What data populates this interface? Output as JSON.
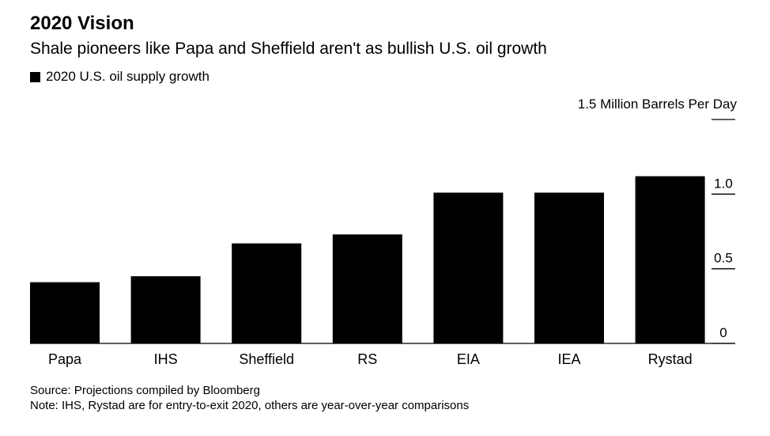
{
  "header": {
    "title": "2020 Vision",
    "subtitle": "Shale pioneers like Papa and Sheffield aren't as bullish U.S. oil growth",
    "legend_label": "2020 U.S. oil supply growth"
  },
  "chart_data": {
    "type": "bar",
    "categories": [
      "Papa",
      "IHS",
      "Sheffield",
      "RS",
      "EIA",
      "IEA",
      "Rystad"
    ],
    "series": [
      {
        "name": "2020 U.S. oil supply growth",
        "values": [
          0.41,
          0.45,
          0.67,
          0.73,
          1.01,
          1.01,
          1.12
        ]
      }
    ],
    "ylabel": "1.5 Million Barrels Per Day",
    "ylim": [
      0,
      1.5
    ],
    "yticks": [
      0,
      0.5,
      1.0,
      1.5
    ],
    "ytick_labels": [
      "0",
      "0.5",
      "1.0",
      ""
    ],
    "bar_color": "#000000",
    "grid": false,
    "y_axis_side": "right"
  },
  "footer": {
    "source": "Source: Projections compiled by Bloomberg",
    "note": "Note: IHS, Rystad are for entry-to-exit 2020, others are year-over-year comparisons"
  }
}
